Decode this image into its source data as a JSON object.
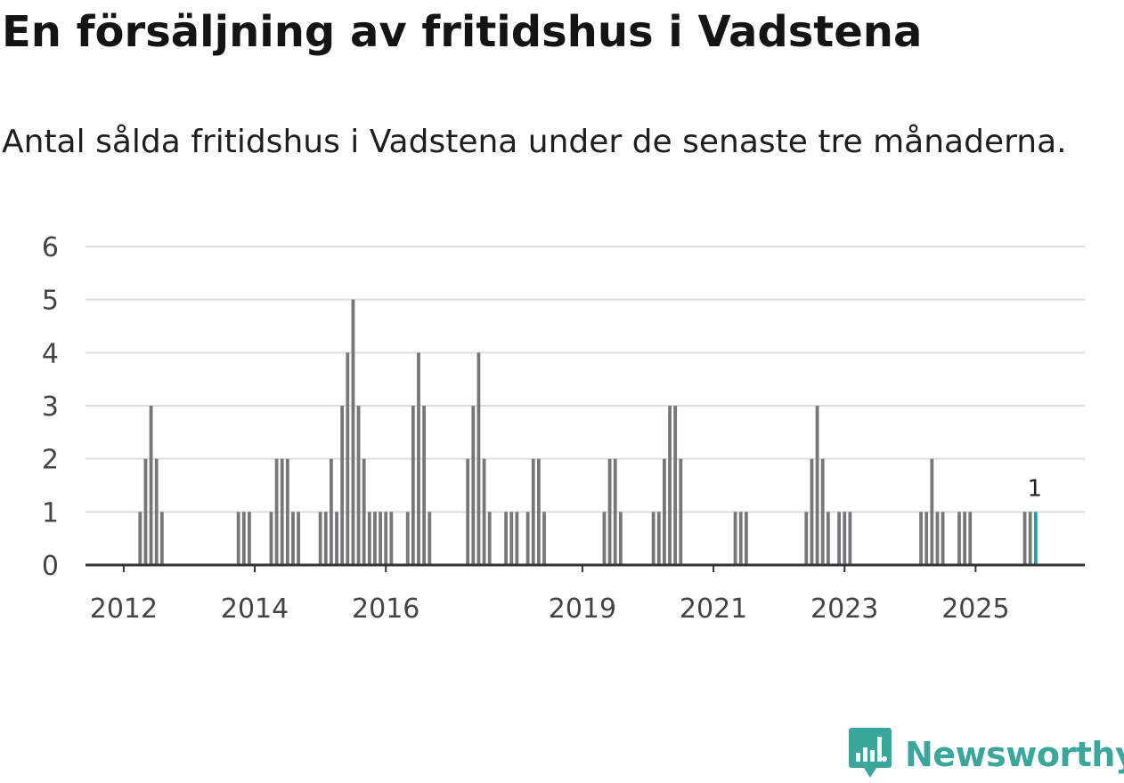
{
  "title": "En försäljning av fritidshus i Vadstena",
  "subtitle": "Antal sålda fritidshus i Vadstena under de senaste tre månaderna.",
  "brand": {
    "name": "Newsworthy",
    "logo_icon": "bar-chart-speech-bubble-icon"
  },
  "colors": {
    "bar": "#77767b",
    "highlight": "#1ba39b",
    "grid": "#dddddd",
    "axis": "#333333"
  },
  "chart_data": {
    "type": "bar",
    "title": "En försäljning av fritidshus i Vadstena",
    "subtitle": "Antal sålda fritidshus i Vadstena under de senaste tre månaderna.",
    "xlabel": "",
    "ylabel": "",
    "ylim": [
      0,
      6
    ],
    "yticks": [
      0,
      1,
      2,
      3,
      4,
      5,
      6
    ],
    "grid": true,
    "x_tick_labels": [
      "2012",
      "2014",
      "2016",
      "2019",
      "2021",
      "2023",
      "2025"
    ],
    "x_tick_positions": [
      "2012-01",
      "2014-01",
      "2016-01",
      "2019-01",
      "2021-01",
      "2023-01",
      "2025-01"
    ],
    "x_range": [
      "2011-06",
      "2026-09"
    ],
    "series": [
      {
        "points": [
          [
            "2012-04",
            1
          ],
          [
            "2012-05",
            2
          ],
          [
            "2012-06",
            3
          ],
          [
            "2012-07",
            2
          ],
          [
            "2012-08",
            1
          ],
          [
            "2013-10",
            1
          ],
          [
            "2013-11",
            1
          ],
          [
            "2013-12",
            1
          ],
          [
            "2014-04",
            1
          ],
          [
            "2014-05",
            2
          ],
          [
            "2014-06",
            2
          ],
          [
            "2014-07",
            2
          ],
          [
            "2014-08",
            1
          ],
          [
            "2014-09",
            1
          ],
          [
            "2015-01",
            1
          ],
          [
            "2015-02",
            1
          ],
          [
            "2015-03",
            2
          ],
          [
            "2015-04",
            1
          ],
          [
            "2015-05",
            3
          ],
          [
            "2015-06",
            4
          ],
          [
            "2015-07",
            5
          ],
          [
            "2015-08",
            3
          ],
          [
            "2015-09",
            2
          ],
          [
            "2015-10",
            1
          ],
          [
            "2015-11",
            1
          ],
          [
            "2015-12",
            1
          ],
          [
            "2016-01",
            1
          ],
          [
            "2016-02",
            1
          ],
          [
            "2016-05",
            1
          ],
          [
            "2016-06",
            3
          ],
          [
            "2016-07",
            4
          ],
          [
            "2016-08",
            3
          ],
          [
            "2016-09",
            1
          ],
          [
            "2017-04",
            2
          ],
          [
            "2017-05",
            3
          ],
          [
            "2017-06",
            4
          ],
          [
            "2017-07",
            2
          ],
          [
            "2017-08",
            1
          ],
          [
            "2017-11",
            1
          ],
          [
            "2017-12",
            1
          ],
          [
            "2018-01",
            1
          ],
          [
            "2018-03",
            1
          ],
          [
            "2018-04",
            2
          ],
          [
            "2018-05",
            2
          ],
          [
            "2018-06",
            1
          ],
          [
            "2019-05",
            1
          ],
          [
            "2019-06",
            2
          ],
          [
            "2019-07",
            2
          ],
          [
            "2019-08",
            1
          ],
          [
            "2020-02",
            1
          ],
          [
            "2020-03",
            1
          ],
          [
            "2020-04",
            2
          ],
          [
            "2020-05",
            3
          ],
          [
            "2020-06",
            3
          ],
          [
            "2020-07",
            2
          ],
          [
            "2021-05",
            1
          ],
          [
            "2021-06",
            1
          ],
          [
            "2021-07",
            1
          ],
          [
            "2022-06",
            1
          ],
          [
            "2022-07",
            2
          ],
          [
            "2022-08",
            3
          ],
          [
            "2022-09",
            2
          ],
          [
            "2022-10",
            1
          ],
          [
            "2022-12",
            1
          ],
          [
            "2023-01",
            1
          ],
          [
            "2023-02",
            1
          ],
          [
            "2024-03",
            1
          ],
          [
            "2024-04",
            1
          ],
          [
            "2024-05",
            2
          ],
          [
            "2024-06",
            1
          ],
          [
            "2024-07",
            1
          ],
          [
            "2024-10",
            1
          ],
          [
            "2024-11",
            1
          ],
          [
            "2024-12",
            1
          ],
          [
            "2025-10",
            1
          ],
          [
            "2025-11",
            1
          ],
          [
            "2025-12",
            1
          ]
        ]
      }
    ],
    "highlight": {
      "x": "2025-12",
      "value": 1,
      "label": "1"
    }
  }
}
